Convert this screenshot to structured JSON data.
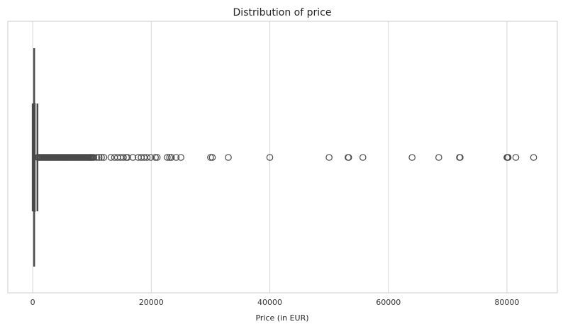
{
  "chart_data": {
    "type": "box",
    "title": "Distribution of price",
    "xlabel": "Price (in EUR)",
    "ylabel": "",
    "xlim": [
      -4200,
      88500
    ],
    "grid": true,
    "orientation": "horizontal",
    "xticks": [
      0,
      20000,
      40000,
      60000,
      80000
    ],
    "xtick_labels": [
      "0",
      "20000",
      "40000",
      "60000",
      "80000"
    ],
    "box": {
      "min": 0,
      "q1": 150,
      "median": 250,
      "q3": 400,
      "whisker_high": 800
    },
    "outliers": [
      850,
      1000,
      1150,
      1300,
      1450,
      1600,
      1750,
      1900,
      2050,
      2200,
      2350,
      2500,
      2650,
      2800,
      2950,
      3100,
      3250,
      3400,
      3550,
      3700,
      3850,
      4000,
      4150,
      4300,
      4450,
      4600,
      4750,
      4900,
      5050,
      5200,
      5350,
      5500,
      5650,
      5800,
      5950,
      6100,
      6250,
      6400,
      6550,
      6700,
      6850,
      7000,
      7150,
      7300,
      7450,
      7600,
      7750,
      7900,
      8050,
      8200,
      8350,
      8500,
      8650,
      8800,
      8950,
      9100,
      9250,
      9400,
      9550,
      9700,
      9850,
      10000,
      10150,
      10300,
      10800,
      11200,
      11600,
      12000,
      13200,
      13800,
      14300,
      14800,
      15300,
      15800,
      16000,
      16900,
      17800,
      18300,
      18800,
      19300,
      19900,
      20700,
      21000,
      22700,
      23100,
      23400,
      24200,
      25000,
      30000,
      30300,
      33000,
      40000,
      50000,
      53200,
      53300,
      55700,
      64000,
      68500,
      72000,
      72100,
      80000,
      80100,
      80200,
      81500,
      84500
    ],
    "colors": {
      "box_fill": "#3a76af",
      "line": "#4a4a4a",
      "grid": "#d6d6d6",
      "frame": "#cccccc"
    }
  }
}
